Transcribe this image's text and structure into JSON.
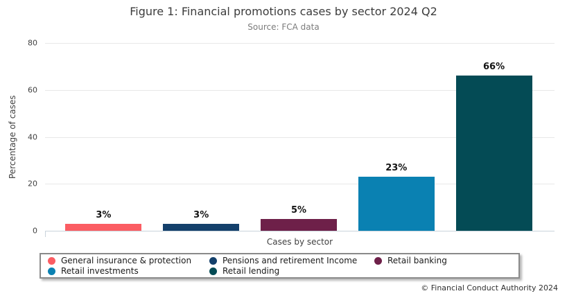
{
  "title": "Figure 1: Financial promotions cases by sector 2024 Q2",
  "subtitle": "Source: FCA data",
  "footer": "© Financial Conduct Authority 2024",
  "chart_data": {
    "type": "bar",
    "title": "Figure 1: Financial promotions cases by sector 2024 Q2",
    "subtitle": "Source: FCA data",
    "categories": [
      "General insurance & protection",
      "Pensions and retirement Income",
      "Retail banking",
      "Retail investments",
      "Retail lending"
    ],
    "values": [
      3,
      3,
      5,
      23,
      66
    ],
    "value_labels": [
      "3%",
      "3%",
      "5%",
      "23%",
      "66%"
    ],
    "colors": [
      "#fb5d63",
      "#14406b",
      "#6e2049",
      "#0a81b2",
      "#044b55"
    ],
    "xlabel": "Cases by sector",
    "ylabel": "Percentage of cases",
    "ylim": [
      0,
      80
    ],
    "yticks": [
      0,
      20,
      40,
      60,
      80
    ],
    "grid": true,
    "legend_position": "bottom"
  }
}
